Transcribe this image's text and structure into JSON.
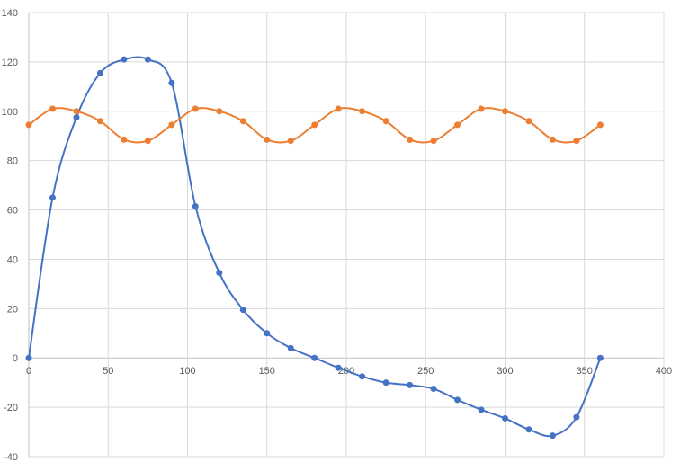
{
  "chart_data": {
    "type": "scatter",
    "title": "",
    "xlabel": "",
    "ylabel": "",
    "xlim": [
      0,
      400
    ],
    "ylim": [
      -40,
      140
    ],
    "x_ticks": [
      0,
      50,
      100,
      150,
      200,
      250,
      300,
      350,
      400
    ],
    "y_ticks": [
      -40,
      -20,
      0,
      20,
      40,
      60,
      80,
      100,
      120,
      140
    ],
    "x_tick_labels": [
      "0",
      "50",
      "100",
      "150",
      "200",
      "250",
      "300",
      "350",
      "400"
    ],
    "y_tick_labels": [
      "-40",
      "-20",
      "0",
      "20",
      "40",
      "60",
      "80",
      "100",
      "120",
      "140"
    ],
    "grid": true,
    "smooth": true,
    "markers": true,
    "series": [
      {
        "color": "#4472c4",
        "x": [
          0,
          15,
          30,
          45,
          60,
          75,
          90,
          105,
          120,
          135,
          150,
          165,
          180,
          195,
          210,
          225,
          240,
          255,
          270,
          285,
          300,
          315,
          330,
          345,
          360
        ],
        "y": [
          0,
          65,
          97.5,
          115.5,
          121,
          121,
          111.5,
          61.5,
          34.5,
          19.5,
          10,
          4,
          0,
          -4,
          -7.5,
          -10,
          -11,
          -12.5,
          -17,
          -21,
          -24.5,
          -29,
          -31.5,
          -24,
          0
        ]
      },
      {
        "color": "#ed7d31",
        "x": [
          0,
          15,
          30,
          45,
          60,
          75,
          90,
          105,
          120,
          135,
          150,
          165,
          180,
          195,
          210,
          225,
          240,
          255,
          270,
          285,
          300,
          315,
          330,
          345,
          360
        ],
        "y": [
          94.5,
          101,
          100,
          96,
          88.5,
          88,
          94.5,
          101,
          100,
          96,
          88.5,
          88,
          94.5,
          101,
          100,
          96,
          88.5,
          88,
          94.5,
          101,
          100,
          96,
          88.5,
          88,
          94.5
        ]
      }
    ]
  }
}
